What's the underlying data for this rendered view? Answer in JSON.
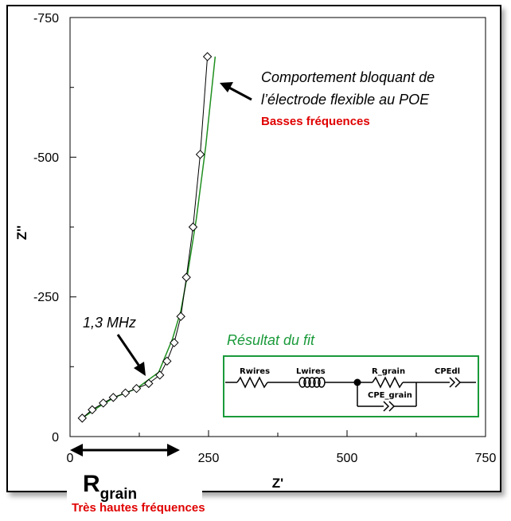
{
  "chart_data": {
    "type": "scatter",
    "xlabel": "Z'",
    "ylabel": "Z''",
    "xlim": [
      0,
      750
    ],
    "ylim": [
      0,
      -750
    ],
    "x_ticks": [
      "0",
      "250",
      "500",
      "750"
    ],
    "y_ticks": [
      "0",
      "-250",
      "-500",
      "-750"
    ],
    "series": [
      {
        "name": "",
        "marker": "diamond",
        "x": [
          22,
          40,
          60,
          78,
          100,
          120,
          142,
          162,
          175,
          188,
          200,
          210,
          222,
          235,
          248
        ],
        "y": [
          -33,
          -48,
          -60,
          -70,
          -78,
          -86,
          -95,
          -110,
          -135,
          -168,
          -215,
          -285,
          -375,
          -505,
          -680
        ]
      },
      {
        "name": "",
        "type": "line",
        "color": "#1f8f1f",
        "x": [
          22,
          50,
          80,
          120,
          160,
          185,
          200,
          212,
          228,
          245,
          262
        ],
        "y": [
          -33,
          -52,
          -70,
          -86,
          -115,
          -175,
          -225,
          -290,
          -390,
          -520,
          -680
        ]
      }
    ]
  },
  "annotations": {
    "behavior_line1": "Comportement bloquant de",
    "behavior_line2": "l’électrode flexible au POE",
    "low_freq": "Basses fréquences",
    "mhz": "1,3 MHz",
    "fit_title": "Résultat du fit",
    "r_grain_main": "R",
    "r_grain_sub": "grain",
    "high_freq": "Très hautes fréquences"
  },
  "circuit": {
    "rwires": "Rwires",
    "lwires": "Lwires",
    "r_grain": "R_grain",
    "cpe_dl": "CPEdl",
    "cpe_grain": "CPE_grain"
  },
  "colors": {
    "fit_line": "#1f8f1f",
    "fit_box": "#1a9a3a",
    "highlight": "#e00000"
  }
}
